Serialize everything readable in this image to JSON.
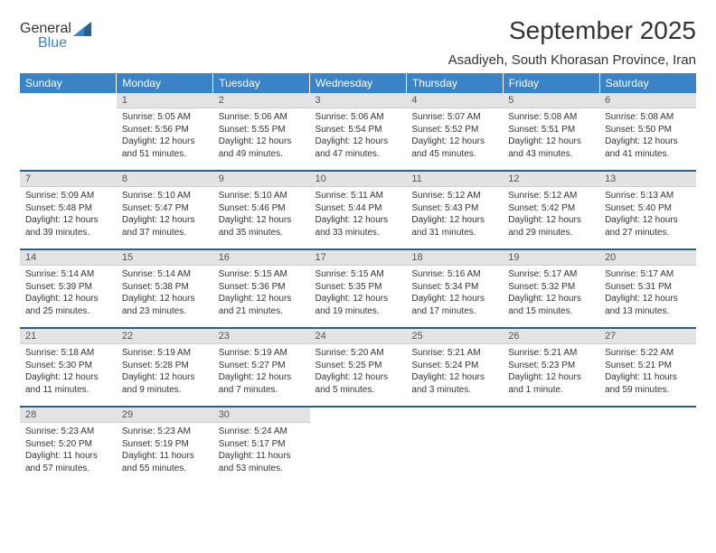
{
  "brand": {
    "general": "General",
    "blue": "Blue"
  },
  "title": "September 2025",
  "location": "Asadiyeh, South Khorasan Province, Iran",
  "colors": {
    "header_bg": "#3a83c6",
    "header_text": "#ffffff",
    "daynum_bg": "#e3e3e3",
    "week_divider": "#2e5f8a",
    "body_text": "#333333",
    "logo_gray": "#6a6a6a"
  },
  "typography": {
    "title_fontsize": 28,
    "location_fontsize": 15,
    "dayheader_fontsize": 12,
    "daynum_fontsize": 11,
    "body_fontsize": 10
  },
  "dayHeaders": [
    "Sunday",
    "Monday",
    "Tuesday",
    "Wednesday",
    "Thursday",
    "Friday",
    "Saturday"
  ],
  "weeks": [
    [
      null,
      {
        "n": "1",
        "sr": "5:05 AM",
        "ss": "5:56 PM",
        "dl": "12 hours and 51 minutes."
      },
      {
        "n": "2",
        "sr": "5:06 AM",
        "ss": "5:55 PM",
        "dl": "12 hours and 49 minutes."
      },
      {
        "n": "3",
        "sr": "5:06 AM",
        "ss": "5:54 PM",
        "dl": "12 hours and 47 minutes."
      },
      {
        "n": "4",
        "sr": "5:07 AM",
        "ss": "5:52 PM",
        "dl": "12 hours and 45 minutes."
      },
      {
        "n": "5",
        "sr": "5:08 AM",
        "ss": "5:51 PM",
        "dl": "12 hours and 43 minutes."
      },
      {
        "n": "6",
        "sr": "5:08 AM",
        "ss": "5:50 PM",
        "dl": "12 hours and 41 minutes."
      }
    ],
    [
      {
        "n": "7",
        "sr": "5:09 AM",
        "ss": "5:48 PM",
        "dl": "12 hours and 39 minutes."
      },
      {
        "n": "8",
        "sr": "5:10 AM",
        "ss": "5:47 PM",
        "dl": "12 hours and 37 minutes."
      },
      {
        "n": "9",
        "sr": "5:10 AM",
        "ss": "5:46 PM",
        "dl": "12 hours and 35 minutes."
      },
      {
        "n": "10",
        "sr": "5:11 AM",
        "ss": "5:44 PM",
        "dl": "12 hours and 33 minutes."
      },
      {
        "n": "11",
        "sr": "5:12 AM",
        "ss": "5:43 PM",
        "dl": "12 hours and 31 minutes."
      },
      {
        "n": "12",
        "sr": "5:12 AM",
        "ss": "5:42 PM",
        "dl": "12 hours and 29 minutes."
      },
      {
        "n": "13",
        "sr": "5:13 AM",
        "ss": "5:40 PM",
        "dl": "12 hours and 27 minutes."
      }
    ],
    [
      {
        "n": "14",
        "sr": "5:14 AM",
        "ss": "5:39 PM",
        "dl": "12 hours and 25 minutes."
      },
      {
        "n": "15",
        "sr": "5:14 AM",
        "ss": "5:38 PM",
        "dl": "12 hours and 23 minutes."
      },
      {
        "n": "16",
        "sr": "5:15 AM",
        "ss": "5:36 PM",
        "dl": "12 hours and 21 minutes."
      },
      {
        "n": "17",
        "sr": "5:15 AM",
        "ss": "5:35 PM",
        "dl": "12 hours and 19 minutes."
      },
      {
        "n": "18",
        "sr": "5:16 AM",
        "ss": "5:34 PM",
        "dl": "12 hours and 17 minutes."
      },
      {
        "n": "19",
        "sr": "5:17 AM",
        "ss": "5:32 PM",
        "dl": "12 hours and 15 minutes."
      },
      {
        "n": "20",
        "sr": "5:17 AM",
        "ss": "5:31 PM",
        "dl": "12 hours and 13 minutes."
      }
    ],
    [
      {
        "n": "21",
        "sr": "5:18 AM",
        "ss": "5:30 PM",
        "dl": "12 hours and 11 minutes."
      },
      {
        "n": "22",
        "sr": "5:19 AM",
        "ss": "5:28 PM",
        "dl": "12 hours and 9 minutes."
      },
      {
        "n": "23",
        "sr": "5:19 AM",
        "ss": "5:27 PM",
        "dl": "12 hours and 7 minutes."
      },
      {
        "n": "24",
        "sr": "5:20 AM",
        "ss": "5:25 PM",
        "dl": "12 hours and 5 minutes."
      },
      {
        "n": "25",
        "sr": "5:21 AM",
        "ss": "5:24 PM",
        "dl": "12 hours and 3 minutes."
      },
      {
        "n": "26",
        "sr": "5:21 AM",
        "ss": "5:23 PM",
        "dl": "12 hours and 1 minute."
      },
      {
        "n": "27",
        "sr": "5:22 AM",
        "ss": "5:21 PM",
        "dl": "11 hours and 59 minutes."
      }
    ],
    [
      {
        "n": "28",
        "sr": "5:23 AM",
        "ss": "5:20 PM",
        "dl": "11 hours and 57 minutes."
      },
      {
        "n": "29",
        "sr": "5:23 AM",
        "ss": "5:19 PM",
        "dl": "11 hours and 55 minutes."
      },
      {
        "n": "30",
        "sr": "5:24 AM",
        "ss": "5:17 PM",
        "dl": "11 hours and 53 minutes."
      },
      null,
      null,
      null,
      null
    ]
  ],
  "labels": {
    "sunrise": "Sunrise:",
    "sunset": "Sunset:",
    "daylight": "Daylight:"
  }
}
